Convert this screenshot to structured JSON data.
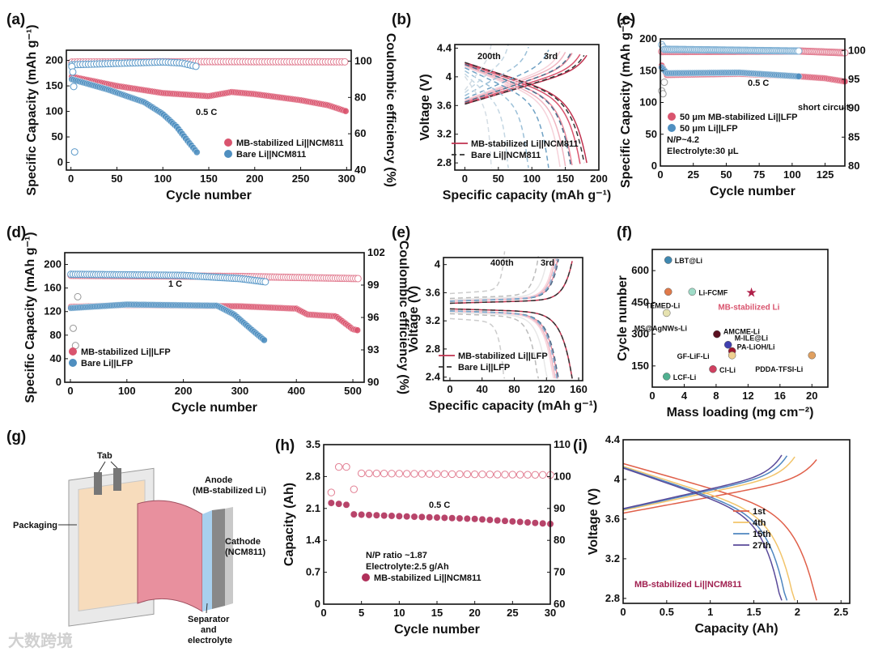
{
  "panel_labels": [
    "(a)",
    "(b)",
    "(c)",
    "(d)",
    "(e)",
    "(f)",
    "(g)",
    "(h)",
    "(i)"
  ],
  "diagram_g": {
    "tab": "Tab",
    "anode": "Anode",
    "anode_sub": "(MB-stabilized Li)",
    "cathode": "Cathode",
    "cathode_sub": "(NCM811)",
    "packaging": "Packaging",
    "separator": "Separator",
    "separator_and": "and",
    "separator_sub": "electrolyte"
  },
  "watermark": "大数跨境",
  "colors": {
    "red": "#d9546e",
    "blue": "#4f8fc0",
    "dark": "#333333"
  },
  "chart_data": [
    {
      "id": "a",
      "type": "scatter",
      "xlabel": "Cycle number",
      "ylabel": "Specific Capacity (mAh g⁻¹)",
      "y2label": "Coulombic efficiency (%)",
      "xlim": [
        -5,
        305
      ],
      "ylim": [
        -15,
        220
      ],
      "y2lim": [
        40,
        106
      ],
      "xticks": [
        0,
        50,
        100,
        150,
        200,
        250,
        300
      ],
      "yticks": [
        0,
        50,
        100,
        150,
        200
      ],
      "y2ticks": [
        40,
        60,
        80,
        100
      ],
      "annotations": [
        "0.5 C"
      ],
      "legend": [
        "MB-stabilized Li||NCM811",
        "Bare Li||NCM811"
      ],
      "series": [
        {
          "name": "MB-stabilized Li||NCM811 capacity",
          "axis": "left",
          "style": "filled",
          "color": "#d9546e",
          "step": 2,
          "points": [
            [
              1,
              168
            ],
            [
              50,
              150
            ],
            [
              100,
              136
            ],
            [
              150,
              130
            ],
            [
              175,
              138
            ],
            [
              200,
              134
            ],
            [
              250,
              122
            ],
            [
              280,
              112
            ],
            [
              300,
              100
            ]
          ]
        },
        {
          "name": "Bare Li||NCM811 capacity",
          "axis": "left",
          "style": "filled",
          "color": "#4f8fc0",
          "step": 2,
          "points": [
            [
              1,
              163
            ],
            [
              40,
              143
            ],
            [
              80,
              118
            ],
            [
              100,
              95
            ],
            [
              115,
              70
            ],
            [
              128,
              40
            ],
            [
              137,
              20
            ]
          ]
        },
        {
          "name": "MB-stabilized Li||NCM811 CE",
          "axis": "right",
          "style": "open",
          "color": "#e27f93",
          "step": 3,
          "points": [
            [
              1,
              99.5
            ],
            [
              150,
              99.7
            ],
            [
              300,
              99.6
            ]
          ]
        },
        {
          "name": "Bare Li||NCM811 CE",
          "axis": "right",
          "style": "open",
          "color": "#5d9ac9",
          "step": 3,
          "points": [
            [
              1,
              98
            ],
            [
              100,
              99.5
            ],
            [
              120,
              99
            ],
            [
              137,
              97
            ]
          ]
        },
        {
          "name": "first-cycle CE",
          "axis": "right",
          "style": "open",
          "color": "#5d9ac9",
          "step": 1,
          "points": [
            [
              1,
              97
            ],
            [
              2,
              94
            ],
            [
              3,
              86
            ],
            [
              4,
              50
            ]
          ]
        }
      ]
    },
    {
      "id": "b",
      "type": "voltage_profile",
      "xlabel": "Specific capacity (mAh g⁻¹)",
      "ylabel": "Voltage (V)",
      "xlim": [
        -15,
        200
      ],
      "ylim": [
        2.7,
        4.45
      ],
      "xticks": [
        0,
        50,
        100,
        150,
        200
      ],
      "yticks": [
        2.8,
        3.2,
        3.6,
        4.0,
        4.4
      ],
      "annotations": [
        "200th",
        "3rd"
      ],
      "legend": [
        "MB-stabilized Li||NCM811",
        "Bare Li||NCM811"
      ],
      "series": [
        {
          "name": "MB-stabilized Li||NCM811",
          "dash": false,
          "colors": [
            "#c0324f",
            "#d9546e",
            "#e88a9c",
            "#f0b5c1",
            "#f6d2da"
          ],
          "capacities": [
            182,
            172,
            160,
            150,
            142
          ]
        },
        {
          "name": "Bare Li||NCM811",
          "dash": true,
          "colors": [
            "#333333",
            "#4a6f8c",
            "#6fa1c4",
            "#9cc0d8",
            "#c4d7e3",
            "#d5dee5"
          ],
          "capacities": [
            178,
            158,
            125,
            95,
            65,
            40
          ]
        }
      ]
    },
    {
      "id": "c",
      "type": "scatter",
      "xlabel": "Cycle number",
      "ylabel": "Specific Capacity (mAh g⁻¹)",
      "y2label": "Coulombic efficiency (%)",
      "xlim": [
        0,
        140
      ],
      "ylim": [
        0,
        200
      ],
      "y2lim": [
        80,
        102
      ],
      "xticks": [
        0,
        25,
        50,
        75,
        100,
        125
      ],
      "yticks": [
        0,
        50,
        100,
        150,
        200
      ],
      "y2ticks": [
        80,
        85,
        90,
        95,
        100
      ],
      "annotations": [
        "0.5 C",
        "short circuit",
        "N/P~4.2",
        "Electrolyte:30 μL"
      ],
      "legend": [
        "50 μm MB-stabilized Li||LFP",
        "50 μm Li||LFP"
      ],
      "series": [
        {
          "name": "MB capacity",
          "axis": "left",
          "style": "filled",
          "color": "#d9546e",
          "step": 1,
          "points": [
            [
              1,
              158
            ],
            [
              5,
              143
            ],
            [
              60,
              145
            ],
            [
              105,
              141
            ],
            [
              125,
              138
            ],
            [
              140,
              133
            ]
          ]
        },
        {
          "name": "Li capacity",
          "axis": "left",
          "style": "filled",
          "color": "#4f8fc0",
          "step": 1,
          "points": [
            [
              1,
              155
            ],
            [
              5,
              146
            ],
            [
              60,
              147
            ],
            [
              105,
              141
            ]
          ]
        },
        {
          "name": "MB CE",
          "axis": "right",
          "style": "open",
          "color": "#e27f93",
          "step": 1,
          "points": [
            [
              1,
              99.8
            ],
            [
              105,
              99.9
            ],
            [
              140,
              99.6
            ]
          ]
        },
        {
          "name": "Li CE",
          "axis": "right",
          "style": "open",
          "color": "#7fb0d4",
          "step": 1,
          "points": [
            [
              1,
              101
            ],
            [
              3,
              100.2
            ],
            [
              105,
              99.9
            ]
          ]
        },
        {
          "name": "first-cycle CE",
          "axis": "right",
          "style": "open",
          "color": "#999999",
          "step": 1,
          "points": [
            [
              1,
              93
            ],
            [
              2,
              92.5
            ],
            [
              3,
              94.5
            ]
          ]
        }
      ]
    },
    {
      "id": "d",
      "type": "scatter",
      "xlabel": "Cycle number",
      "ylabel": "Specific Capacity (mAh g⁻¹)",
      "y2label": "Coulombic efficiency (%)",
      "xlim": [
        -10,
        520
      ],
      "ylim": [
        0,
        220
      ],
      "y2lim": [
        90,
        102
      ],
      "xticks": [
        0,
        100,
        200,
        300,
        400,
        500
      ],
      "yticks": [
        0,
        40,
        80,
        120,
        160,
        200
      ],
      "y2ticks": [
        90,
        93,
        96,
        99,
        102
      ],
      "annotations": [
        "1 C"
      ],
      "legend": [
        "MB-stabilized Li||LFP",
        "Bare Li||LFP"
      ],
      "series": [
        {
          "name": "MB capacity",
          "axis": "left",
          "style": "filled",
          "color": "#d9546e",
          "step": 3,
          "points": [
            [
              1,
              128
            ],
            [
              100,
              131
            ],
            [
              300,
              129
            ],
            [
              400,
              125
            ],
            [
              420,
              115
            ],
            [
              470,
              112
            ],
            [
              500,
              90
            ],
            [
              510,
              88
            ]
          ]
        },
        {
          "name": "Bare capacity",
          "axis": "left",
          "style": "filled",
          "color": "#4f8fc0",
          "step": 3,
          "points": [
            [
              1,
              126
            ],
            [
              100,
              132
            ],
            [
              260,
              130
            ],
            [
              290,
              115
            ],
            [
              320,
              90
            ],
            [
              345,
              70
            ]
          ]
        },
        {
          "name": "MB CE",
          "axis": "right",
          "style": "open",
          "color": "#e27f93",
          "step": 4,
          "points": [
            [
              1,
              99.9
            ],
            [
              300,
              99.8
            ],
            [
              510,
              99.6
            ]
          ]
        },
        {
          "name": "Bare CE",
          "axis": "right",
          "style": "open",
          "color": "#5d9ac9",
          "step": 4,
          "points": [
            [
              1,
              100
            ],
            [
              200,
              99.9
            ],
            [
              300,
              99.6
            ],
            [
              345,
              99.3
            ]
          ]
        },
        {
          "name": "early CE",
          "axis": "right",
          "style": "open",
          "color": "#999999",
          "step": 4,
          "points": [
            [
              5,
              95
            ],
            [
              10,
              93
            ],
            [
              15,
              101.2
            ]
          ]
        }
      ]
    },
    {
      "id": "e",
      "type": "voltage_profile",
      "xlabel": "Specific capacity (mAh g⁻¹)",
      "ylabel": "Voltage (V)",
      "xlim": [
        -8,
        165
      ],
      "ylim": [
        2.35,
        4.1
      ],
      "xticks": [
        0,
        40,
        80,
        120,
        160
      ],
      "yticks": [
        2.4,
        2.8,
        3.2,
        3.6,
        4.0
      ],
      "annotations": [
        "400th",
        "3rd"
      ],
      "legend": [
        "MB-stabilized Li||LFP",
        "Bare Li||LFP"
      ],
      "series": [
        {
          "name": "MB-stabilized Li||LFP",
          "dash": false,
          "colors": [
            "#c0324f",
            "#e88a9c",
            "#f0b5c1",
            "#f6d2da",
            "#e8e8e8"
          ],
          "capacities": [
            152,
            134,
            131,
            129,
            121
          ]
        },
        {
          "name": "Bare Li||LFP",
          "dash": true,
          "colors": [
            "#333333",
            "#4a6f8c",
            "#7fb0d4",
            "#bbbbbb",
            "#cccccc"
          ],
          "capacities": [
            152,
            135,
            133,
            110,
            68
          ]
        }
      ]
    },
    {
      "id": "f",
      "type": "scatter_labeled",
      "xlabel": "Mass loading (mg cm⁻²)",
      "ylabel": "Cycle number",
      "xlim": [
        0,
        22
      ],
      "ylim": [
        50,
        700
      ],
      "xticks": [
        0,
        4,
        8,
        12,
        16,
        20
      ],
      "yticks": [
        150,
        300,
        450,
        600
      ],
      "points": [
        {
          "label": "LBT@Li",
          "x": 2,
          "y": 650,
          "color": "#3f88b0"
        },
        {
          "label": "TEMED-Li",
          "x": 2,
          "y": 500,
          "color": "#e07a4a"
        },
        {
          "label": "Li-FCMF",
          "x": 5,
          "y": 500,
          "color": "#9fdcc8"
        },
        {
          "label": "MB-stabilized Li",
          "x": 12.3,
          "y": 500,
          "color": "#b0204a",
          "marker": "star"
        },
        {
          "label": "MS@AgNWs-Li",
          "x": 1.8,
          "y": 400,
          "color": "#e6e2b0"
        },
        {
          "label": "AMCME-Li",
          "x": 8.1,
          "y": 300,
          "color": "#5a1020"
        },
        {
          "label": "M-ILE@Li",
          "x": 9.5,
          "y": 250,
          "color": "#4040b0"
        },
        {
          "label": "PA-LiOH/Li",
          "x": 10,
          "y": 220,
          "color": "#a01830"
        },
        {
          "label": "GF-LiF-Li",
          "x": 10,
          "y": 200,
          "color": "#f0d090"
        },
        {
          "label": "PDDA-TFSI-Li",
          "x": 20,
          "y": 200,
          "color": "#e0a060"
        },
        {
          "label": "Cl-Li",
          "x": 7.6,
          "y": 135,
          "color": "#d04060"
        },
        {
          "label": "LCF-Li",
          "x": 1.8,
          "y": 100,
          "color": "#50b090"
        }
      ]
    },
    {
      "id": "h",
      "type": "scatter",
      "xlabel": "Cycle number",
      "ylabel": "Capacity (Ah)",
      "y2label": "",
      "xlim": [
        0,
        30
      ],
      "ylim": [
        0,
        3.5
      ],
      "y2lim": [
        60,
        110
      ],
      "xticks": [
        0,
        5,
        10,
        15,
        20,
        25,
        30
      ],
      "yticks": [
        0.0,
        0.7,
        1.4,
        2.1,
        2.8,
        3.5
      ],
      "y2ticks": [
        60,
        70,
        80,
        90,
        100,
        110
      ],
      "annotations": [
        "0.5 C",
        "N/P ratio ~1.87",
        "Electrolyte:2.5 g/Ah"
      ],
      "legend": [
        "MB-stabilized Li||NCM811"
      ],
      "series": [
        {
          "name": "capacity",
          "axis": "left",
          "style": "filled",
          "color": "#b0305a",
          "step": 1,
          "points": [
            [
              1,
              2.22
            ],
            [
              3,
              2.18
            ],
            [
              4,
              1.97
            ],
            [
              10,
              1.93
            ],
            [
              20,
              1.87
            ],
            [
              30,
              1.76
            ]
          ]
        },
        {
          "name": "CE",
          "axis": "right",
          "style": "open",
          "color": "#e27f93",
          "step": 1,
          "points": [
            [
              1,
              95
            ],
            [
              2,
              103
            ],
            [
              3,
              103
            ],
            [
              4,
              96
            ],
            [
              5,
              101
            ],
            [
              30,
              100.5
            ]
          ]
        }
      ]
    },
    {
      "id": "i",
      "type": "voltage_profile",
      "xlabel": "Capacity (Ah)",
      "ylabel": "Voltage (V)",
      "xlim": [
        0,
        2.6
      ],
      "ylim": [
        2.75,
        4.4
      ],
      "xticks": [
        0.0,
        0.5,
        1.0,
        1.5,
        2.0,
        2.5
      ],
      "yticks": [
        2.8,
        3.2,
        3.6,
        4.0,
        4.4
      ],
      "annotations": [
        "MB-stabilized Li||NCM811"
      ],
      "legend": [
        "1st",
        "4th",
        "15th",
        "27th"
      ],
      "series": [
        {
          "name": "cycles",
          "dash": false,
          "colors": [
            "#e0604a",
            "#f2c46a",
            "#4f86c0",
            "#5a4a9a"
          ],
          "capacities": [
            2.22,
            1.97,
            1.88,
            1.82
          ]
        }
      ]
    }
  ]
}
